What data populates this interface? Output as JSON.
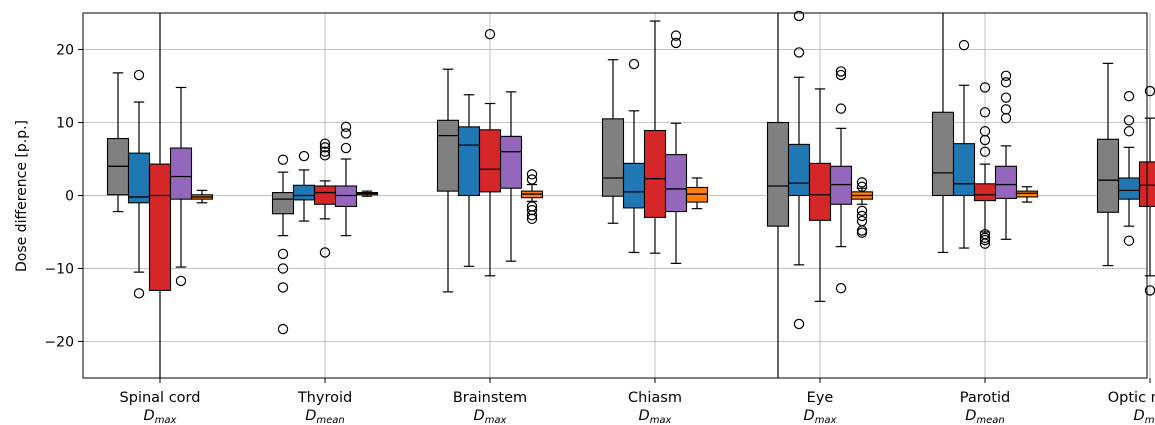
{
  "chart_data": {
    "type": "box",
    "ylabel": "Dose difference [p.p.]",
    "ylim": [
      -25,
      25
    ],
    "yticks": [
      -20,
      -10,
      0,
      10,
      20
    ],
    "grid": true,
    "legend": "none",
    "series_colors": [
      "#808080",
      "#1f77b4",
      "#d62728",
      "#9467bd",
      "#ff7f0e"
    ],
    "categories": [
      {
        "name": "Spinal cord",
        "metric": "D",
        "sub": "max"
      },
      {
        "name": "Thyroid",
        "metric": "D",
        "sub": "mean"
      },
      {
        "name": "Brainstem",
        "metric": "D",
        "sub": "max"
      },
      {
        "name": "Chiasm",
        "metric": "D",
        "sub": "max"
      },
      {
        "name": "Eye",
        "metric": "D",
        "sub": "max"
      },
      {
        "name": "Parotid",
        "metric": "D",
        "sub": "mean"
      },
      {
        "name": "Optic nerve",
        "metric": "D",
        "sub": "max"
      }
    ],
    "boxes": [
      [
        {
          "q1": 0.1,
          "med": 4.0,
          "q3": 7.8,
          "wlo": -2.2,
          "whi": 16.8,
          "outliers": []
        },
        {
          "q1": -1.0,
          "med": -0.2,
          "q3": 5.8,
          "wlo": -10.5,
          "whi": 12.8,
          "outliers": [
            16.5,
            -13.4
          ]
        },
        {
          "q1": -13.0,
          "med": 0.0,
          "q3": 4.3,
          "wlo": -29.0,
          "whi": 29.0,
          "outliers": []
        },
        {
          "q1": -0.5,
          "med": 2.6,
          "q3": 6.5,
          "wlo": -9.8,
          "whi": 14.8,
          "outliers": [
            -11.7
          ]
        },
        {
          "q1": -0.5,
          "med": -0.2,
          "q3": 0.1,
          "wlo": -1.0,
          "whi": 0.7,
          "outliers": []
        }
      ],
      [
        {
          "q1": -2.5,
          "med": -0.5,
          "q3": 0.4,
          "wlo": -5.5,
          "whi": 3.2,
          "outliers": [
            4.9,
            -8.0,
            -10.0,
            -12.6,
            -18.3
          ]
        },
        {
          "q1": -0.6,
          "med": 0.0,
          "q3": 1.4,
          "wlo": -3.5,
          "whi": 3.5,
          "outliers": [
            5.4
          ]
        },
        {
          "q1": -1.2,
          "med": 0.4,
          "q3": 1.3,
          "wlo": -3.2,
          "whi": 2.0,
          "outliers": [
            7.1,
            6.6,
            6.0,
            5.5,
            -7.8
          ]
        },
        {
          "q1": -1.5,
          "med": 0.0,
          "q3": 1.3,
          "wlo": -5.5,
          "whi": 5.0,
          "outliers": [
            9.4,
            8.5,
            6.5
          ]
        },
        {
          "q1": 0.1,
          "med": 0.3,
          "q3": 0.4,
          "wlo": -0.1,
          "whi": 0.6,
          "outliers": []
        }
      ],
      [
        {
          "q1": 0.6,
          "med": 8.2,
          "q3": 10.3,
          "wlo": -13.2,
          "whi": 17.3,
          "outliers": []
        },
        {
          "q1": 0.0,
          "med": 6.9,
          "q3": 9.4,
          "wlo": -9.7,
          "whi": 13.8,
          "outliers": []
        },
        {
          "q1": 0.5,
          "med": 3.6,
          "q3": 9.0,
          "wlo": -11.0,
          "whi": 12.6,
          "outliers": [
            22.1
          ]
        },
        {
          "q1": 1.0,
          "med": 6.0,
          "q3": 8.1,
          "wlo": -9.0,
          "whi": 14.2,
          "outliers": []
        },
        {
          "q1": -0.3,
          "med": 0.2,
          "q3": 0.6,
          "wlo": -0.8,
          "whi": 1.5,
          "outliers": [
            2.9,
            2.2,
            -1.5,
            -2.0,
            -2.7,
            -3.2
          ]
        }
      ],
      [
        {
          "q1": -0.1,
          "med": 2.4,
          "q3": 10.5,
          "wlo": -3.8,
          "whi": 18.6,
          "outliers": []
        },
        {
          "q1": -1.7,
          "med": 0.5,
          "q3": 4.4,
          "wlo": -7.8,
          "whi": 11.6,
          "outliers": [
            18.0
          ]
        },
        {
          "q1": -3.0,
          "med": 2.3,
          "q3": 8.9,
          "wlo": -7.9,
          "whi": 23.9,
          "outliers": []
        },
        {
          "q1": -2.2,
          "med": 0.9,
          "q3": 5.6,
          "wlo": -9.3,
          "whi": 9.9,
          "outliers": [
            21.9,
            20.9
          ]
        },
        {
          "q1": -0.9,
          "med": 0.2,
          "q3": 1.1,
          "wlo": -1.8,
          "whi": 2.4,
          "outliers": []
        }
      ],
      [
        {
          "q1": -4.2,
          "med": 1.3,
          "q3": 10.0,
          "wlo": -29.0,
          "whi": 29.0,
          "outliers": []
        },
        {
          "q1": 0.0,
          "med": 1.7,
          "q3": 7.0,
          "wlo": -9.5,
          "whi": 16.2,
          "outliers": [
            19.6,
            24.6,
            -17.6
          ]
        },
        {
          "q1": -3.4,
          "med": 0.1,
          "q3": 4.4,
          "wlo": -14.5,
          "whi": 14.6,
          "outliers": []
        },
        {
          "q1": -1.2,
          "med": 1.5,
          "q3": 4.0,
          "wlo": -7.0,
          "whi": 9.2,
          "outliers": [
            17.0,
            16.5,
            11.9,
            -12.7
          ]
        },
        {
          "q1": -0.5,
          "med": 0.0,
          "q3": 0.5,
          "wlo": -1.2,
          "whi": 1.0,
          "outliers": [
            1.8,
            1.2,
            -2.1,
            -2.8,
            -3.5,
            -4.8,
            -5.1
          ]
        }
      ],
      [
        {
          "q1": 0.0,
          "med": 3.1,
          "q3": 11.4,
          "wlo": -7.8,
          "whi": 29.0,
          "outliers": []
        },
        {
          "q1": 0.0,
          "med": 1.6,
          "q3": 7.1,
          "wlo": -7.2,
          "whi": 15.1,
          "outliers": [
            20.6,
            25.6
          ]
        },
        {
          "q1": -0.7,
          "med": 0.1,
          "q3": 1.6,
          "wlo": -5.0,
          "whi": 4.3,
          "outliers": [
            14.8,
            11.4,
            8.8,
            7.6,
            6.0,
            -5.3,
            -5.8,
            -6.1,
            -6.6
          ]
        },
        {
          "q1": -0.4,
          "med": 1.5,
          "q3": 4.0,
          "wlo": -6.0,
          "whi": 6.8,
          "outliers": [
            16.4,
            15.5,
            13.4,
            11.8,
            10.6
          ]
        },
        {
          "q1": -0.2,
          "med": 0.3,
          "q3": 0.6,
          "wlo": -0.9,
          "whi": 1.2,
          "outliers": []
        }
      ],
      [
        {
          "q1": -2.3,
          "med": 2.1,
          "q3": 7.7,
          "wlo": -9.6,
          "whi": 18.1,
          "outliers": []
        },
        {
          "q1": -0.5,
          "med": 0.7,
          "q3": 2.4,
          "wlo": -4.2,
          "whi": 6.6,
          "outliers": [
            13.6,
            10.3,
            8.8,
            -6.2
          ]
        },
        {
          "q1": -1.5,
          "med": 1.4,
          "q3": 4.6,
          "wlo": -11.0,
          "whi": 10.6,
          "outliers": [
            14.3,
            -13.0
          ]
        },
        {
          "q1": 0.5,
          "med": 1.6,
          "q3": 3.2,
          "wlo": -3.4,
          "whi": 6.3,
          "outliers": [
            13.7,
            13.3
          ]
        },
        {
          "q1": -0.6,
          "med": 0.6,
          "q3": 1.4,
          "wlo": -2.1,
          "whi": 4.7,
          "outliers": []
        }
      ]
    ]
  }
}
